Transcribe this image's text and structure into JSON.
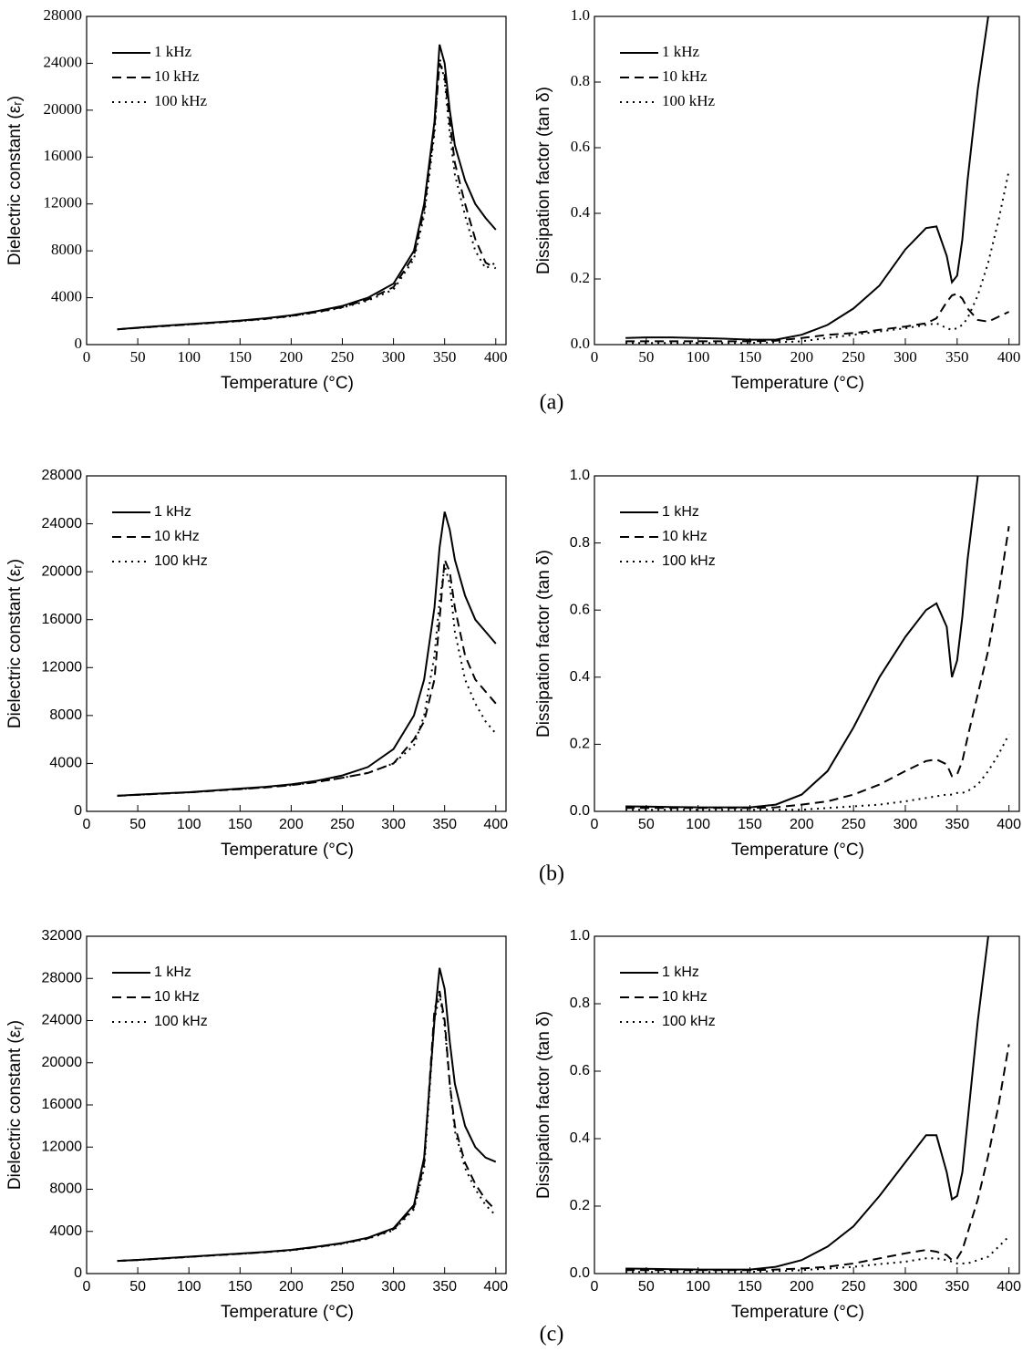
{
  "chart_data": [
    {
      "type": "line",
      "caption": null,
      "ylabel": "Dielectric constant (εᵣ)",
      "xlabel": "Temperature (°C)",
      "x": [
        30,
        50,
        75,
        100,
        125,
        150,
        175,
        200,
        225,
        250,
        275,
        300,
        320,
        330,
        340,
        345,
        350,
        355,
        360,
        370,
        380,
        390,
        400
      ],
      "xlim": [
        0,
        410
      ],
      "xticks": [
        0,
        50,
        100,
        150,
        200,
        250,
        300,
        350,
        400
      ],
      "ylim": [
        0,
        28000
      ],
      "yticks": [
        0,
        4000,
        8000,
        12000,
        16000,
        20000,
        24000,
        28000
      ],
      "legend": "upper left",
      "series": [
        {
          "name": "1 kHz",
          "color": "#000000",
          "line_style": "solid",
          "values": [
            1300,
            1450,
            1600,
            1750,
            1900,
            2050,
            2250,
            2500,
            2850,
            3300,
            4000,
            5200,
            8000,
            12000,
            19000,
            25600,
            24000,
            20000,
            17000,
            14000,
            12000,
            10800,
            9800
          ]
        },
        {
          "name": "10 kHz",
          "color": "#000000",
          "line_style": "dashed",
          "values": [
            1300,
            1430,
            1580,
            1720,
            1870,
            2020,
            2200,
            2450,
            2780,
            3200,
            3850,
            4900,
            7600,
            11500,
            18500,
            24000,
            23000,
            19000,
            15500,
            12000,
            9000,
            7000,
            6500
          ]
        },
        {
          "name": "100 kHz",
          "color": "#000000",
          "line_style": "dotted",
          "values": [
            1300,
            1420,
            1570,
            1710,
            1860,
            2000,
            2180,
            2420,
            2750,
            3150,
            3750,
            4700,
            7300,
            11000,
            18000,
            24500,
            22500,
            18000,
            14500,
            11000,
            8000,
            6500,
            7000
          ]
        }
      ]
    },
    {
      "type": "line",
      "caption": "(a)",
      "ylabel": "Dissipation factor (tan δ)",
      "xlabel": "Temperature (°C)",
      "x": [
        30,
        50,
        75,
        100,
        125,
        150,
        175,
        200,
        225,
        250,
        275,
        300,
        320,
        330,
        340,
        345,
        350,
        355,
        360,
        370,
        380,
        390,
        400
      ],
      "xlim": [
        0,
        410
      ],
      "xticks": [
        0,
        50,
        100,
        150,
        200,
        250,
        300,
        350,
        400
      ],
      "ylim": [
        0,
        1
      ],
      "yticks": [
        {
          "value": 0,
          "label": "0.0"
        },
        0.2,
        0.4,
        0.6,
        0.8,
        {
          "value": 1,
          "label": "1.0"
        }
      ],
      "legend": "upper left",
      "series": [
        {
          "name": "1 kHz",
          "color": "#000000",
          "line_style": "solid",
          "values": [
            0.02,
            0.022,
            0.022,
            0.02,
            0.018,
            0.015,
            0.015,
            0.03,
            0.06,
            0.11,
            0.18,
            0.29,
            0.355,
            0.36,
            0.27,
            0.19,
            0.21,
            0.32,
            0.5,
            0.78,
            1.0,
            null,
            null
          ]
        },
        {
          "name": "10 kHz",
          "color": "#000000",
          "line_style": "dashed",
          "values": [
            0.01,
            0.01,
            0.01,
            0.01,
            0.01,
            0.01,
            0.012,
            0.02,
            0.03,
            0.035,
            0.045,
            0.055,
            0.065,
            0.08,
            0.13,
            0.15,
            0.155,
            0.14,
            0.11,
            0.075,
            0.07,
            0.085,
            0.1
          ]
        },
        {
          "name": "100 kHz",
          "color": "#000000",
          "line_style": "dotted",
          "values": [
            0.005,
            0.005,
            0.005,
            0.005,
            0.005,
            0.005,
            0.007,
            0.01,
            0.02,
            0.03,
            0.04,
            0.05,
            0.06,
            0.065,
            0.05,
            0.045,
            0.05,
            0.06,
            0.08,
            0.15,
            0.25,
            0.38,
            0.53
          ]
        }
      ]
    },
    {
      "type": "line",
      "caption": null,
      "ylabel": "Dielectric constant (εᵣ)",
      "xlabel": "Temperature (°C)",
      "x": [
        30,
        50,
        75,
        100,
        125,
        150,
        175,
        200,
        225,
        250,
        275,
        300,
        320,
        330,
        340,
        345,
        350,
        355,
        360,
        370,
        380,
        390,
        400
      ],
      "xlim": [
        0,
        410
      ],
      "xticks": [
        0,
        50,
        100,
        150,
        200,
        250,
        300,
        350,
        400
      ],
      "ylim": [
        0,
        28000
      ],
      "yticks": [
        0,
        4000,
        8000,
        12000,
        16000,
        20000,
        24000,
        28000
      ],
      "legend": "upper left",
      "series": [
        {
          "name": "1 kHz",
          "color": "#000000",
          "line_style": "solid",
          "values": [
            1300,
            1400,
            1500,
            1600,
            1750,
            1900,
            2050,
            2250,
            2550,
            3000,
            3700,
            5200,
            8000,
            11000,
            17000,
            22000,
            25000,
            23500,
            21000,
            18000,
            16000,
            15000,
            14000
          ]
        },
        {
          "name": "10 kHz",
          "color": "#000000",
          "line_style": "dashed",
          "values": [
            1300,
            1380,
            1480,
            1580,
            1720,
            1860,
            2000,
            2180,
            2450,
            2800,
            3200,
            4000,
            6000,
            7500,
            11000,
            16000,
            21000,
            20000,
            17000,
            13000,
            11000,
            10000,
            9000
          ]
        },
        {
          "name": "100 kHz",
          "color": "#000000",
          "line_style": "dotted",
          "values": [
            1300,
            1380,
            1480,
            1580,
            1720,
            1860,
            2000,
            2180,
            2450,
            2800,
            3200,
            4000,
            5500,
            8000,
            13000,
            17500,
            20500,
            19000,
            15000,
            11000,
            9000,
            7500,
            6500
          ]
        }
      ]
    },
    {
      "type": "line",
      "caption": "(b)",
      "ylabel": "Dissipation factor (tan δ)",
      "xlabel": "Temperature (°C)",
      "x": [
        30,
        50,
        75,
        100,
        125,
        150,
        175,
        200,
        225,
        250,
        275,
        300,
        320,
        330,
        340,
        345,
        350,
        355,
        360,
        370,
        380,
        390,
        400
      ],
      "xlim": [
        0,
        410
      ],
      "xticks": [
        0,
        50,
        100,
        150,
        200,
        250,
        300,
        350,
        400
      ],
      "ylim": [
        0,
        1
      ],
      "yticks": [
        {
          "value": 0,
          "label": "0.0"
        },
        0.2,
        0.4,
        0.6,
        0.8,
        {
          "value": 1,
          "label": "1.0"
        }
      ],
      "legend": "upper left",
      "series": [
        {
          "name": "1 kHz",
          "color": "#000000",
          "line_style": "solid",
          "values": [
            0.015,
            0.014,
            0.013,
            0.012,
            0.012,
            0.012,
            0.02,
            0.05,
            0.12,
            0.25,
            0.4,
            0.52,
            0.6,
            0.62,
            0.55,
            0.4,
            0.45,
            0.58,
            0.75,
            1.0,
            null,
            null,
            null
          ]
        },
        {
          "name": "10 kHz",
          "color": "#000000",
          "line_style": "dashed",
          "values": [
            0.01,
            0.01,
            0.01,
            0.01,
            0.01,
            0.01,
            0.012,
            0.02,
            0.03,
            0.05,
            0.08,
            0.12,
            0.15,
            0.155,
            0.14,
            0.105,
            0.11,
            0.15,
            0.22,
            0.35,
            0.48,
            0.65,
            0.85
          ]
        },
        {
          "name": "100 kHz",
          "color": "#000000",
          "line_style": "dotted",
          "values": [
            0.005,
            0.005,
            0.005,
            0.005,
            0.005,
            0.005,
            0.005,
            0.005,
            0.01,
            0.015,
            0.02,
            0.03,
            0.04,
            0.045,
            0.05,
            0.05,
            0.055,
            0.055,
            0.06,
            0.08,
            0.12,
            0.17,
            0.23
          ]
        }
      ]
    },
    {
      "type": "line",
      "caption": null,
      "ylabel": "Dielectric constant (εᵣ)",
      "xlabel": "Temperature (°C)",
      "x": [
        30,
        50,
        75,
        100,
        125,
        150,
        175,
        200,
        225,
        250,
        275,
        300,
        320,
        330,
        340,
        345,
        350,
        355,
        360,
        370,
        380,
        390,
        400
      ],
      "xlim": [
        0,
        410
      ],
      "xticks": [
        0,
        50,
        100,
        150,
        200,
        250,
        300,
        350,
        400
      ],
      "ylim": [
        0,
        32000
      ],
      "yticks": [
        0,
        4000,
        8000,
        12000,
        16000,
        20000,
        24000,
        28000,
        32000
      ],
      "legend": "upper left",
      "series": [
        {
          "name": "1 kHz",
          "color": "#000000",
          "line_style": "solid",
          "values": [
            1200,
            1300,
            1450,
            1600,
            1750,
            1900,
            2050,
            2250,
            2550,
            2900,
            3400,
            4300,
            6500,
            11000,
            24000,
            29000,
            27000,
            22000,
            18000,
            14000,
            12000,
            11000,
            10600
          ]
        },
        {
          "name": "10 kHz",
          "color": "#000000",
          "line_style": "dashed",
          "values": [
            1200,
            1290,
            1430,
            1580,
            1730,
            1880,
            2030,
            2230,
            2520,
            2860,
            3350,
            4200,
            6300,
            10500,
            25000,
            26800,
            24000,
            18000,
            14000,
            10500,
            8500,
            7000,
            6000
          ]
        },
        {
          "name": "100 kHz",
          "color": "#000000",
          "line_style": "dotted",
          "values": [
            1200,
            1280,
            1420,
            1570,
            1720,
            1870,
            2020,
            2200,
            2500,
            2830,
            3300,
            4100,
            6100,
            10000,
            24000,
            26500,
            23500,
            18000,
            13500,
            10000,
            8000,
            6500,
            5500
          ]
        }
      ]
    },
    {
      "type": "line",
      "caption": "(c)",
      "ylabel": "Dissipation factor (tan δ)",
      "xlabel": "Temperature (°C)",
      "x": [
        30,
        50,
        75,
        100,
        125,
        150,
        175,
        200,
        225,
        250,
        275,
        300,
        320,
        330,
        340,
        345,
        350,
        355,
        360,
        370,
        380,
        390,
        400
      ],
      "xlim": [
        0,
        410
      ],
      "xticks": [
        0,
        50,
        100,
        150,
        200,
        250,
        300,
        350,
        400
      ],
      "ylim": [
        0,
        1
      ],
      "yticks": [
        {
          "value": 0,
          "label": "0.0"
        },
        0.2,
        0.4,
        0.6,
        0.8,
        {
          "value": 1,
          "label": "1.0"
        }
      ],
      "legend": "upper left",
      "series": [
        {
          "name": "1 kHz",
          "color": "#000000",
          "line_style": "solid",
          "values": [
            0.015,
            0.014,
            0.013,
            0.012,
            0.012,
            0.012,
            0.02,
            0.04,
            0.08,
            0.14,
            0.23,
            0.33,
            0.41,
            0.41,
            0.3,
            0.22,
            0.23,
            0.3,
            0.45,
            0.75,
            1.0,
            null,
            null
          ]
        },
        {
          "name": "10 kHz",
          "color": "#000000",
          "line_style": "dashed",
          "values": [
            0.01,
            0.01,
            0.01,
            0.01,
            0.01,
            0.01,
            0.012,
            0.015,
            0.02,
            0.03,
            0.045,
            0.06,
            0.07,
            0.065,
            0.055,
            0.04,
            0.045,
            0.07,
            0.12,
            0.22,
            0.35,
            0.5,
            0.68
          ]
        },
        {
          "name": "100 kHz",
          "color": "#000000",
          "line_style": "dotted",
          "values": [
            0.005,
            0.005,
            0.005,
            0.005,
            0.005,
            0.005,
            0.007,
            0.01,
            0.015,
            0.02,
            0.028,
            0.035,
            0.045,
            0.045,
            0.04,
            0.035,
            0.03,
            0.03,
            0.03,
            0.04,
            0.05,
            0.08,
            0.11
          ]
        }
      ]
    }
  ]
}
